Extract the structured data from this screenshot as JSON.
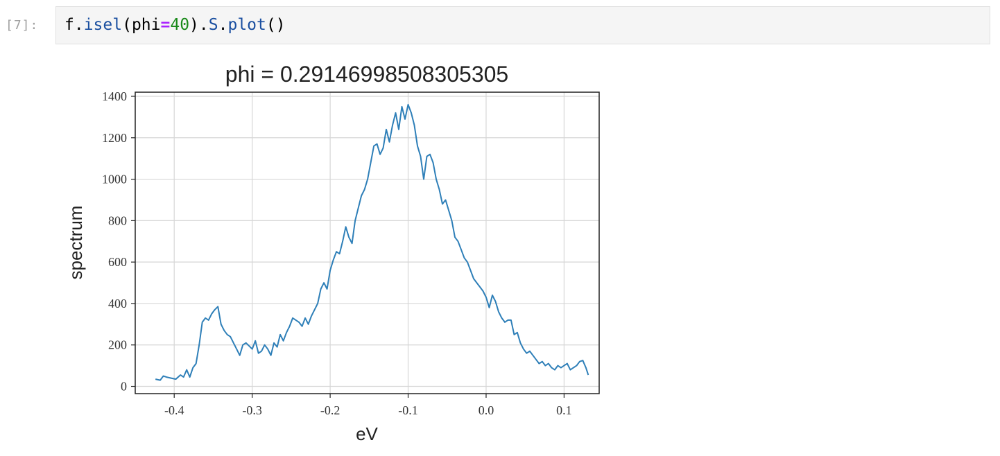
{
  "cell": {
    "prompt": "[7]:",
    "code": {
      "p1": "f.",
      "p2": "isel",
      "p3": "(phi",
      "p4": "=",
      "p5": "40",
      "p6": ").",
      "p7": "S",
      "p8": ".",
      "p9": "plot",
      "p10": "()"
    }
  },
  "chart_data": {
    "type": "line",
    "title": "phi = 0.29146998508305305",
    "xlabel": "eV",
    "ylabel": "spectrum",
    "xlim": [
      -0.45,
      0.145
    ],
    "ylim": [
      -35,
      1420
    ],
    "xticks": [
      -0.4,
      -0.3,
      -0.2,
      -0.1,
      0.0,
      0.1
    ],
    "xtick_labels": [
      "-0.4",
      "-0.3",
      "-0.2",
      "-0.1",
      "0.0",
      "0.1"
    ],
    "yticks": [
      0,
      200,
      400,
      600,
      800,
      1000,
      1200,
      1400
    ],
    "ytick_labels": [
      "0",
      "200",
      "400",
      "600",
      "800",
      "1000",
      "1200",
      "1400"
    ],
    "grid": true,
    "color": "#2e7fb8",
    "series": [
      {
        "x": [
          -0.424,
          -0.418,
          -0.414,
          -0.41,
          -0.404,
          -0.398,
          -0.392,
          -0.388,
          -0.384,
          -0.38,
          -0.376,
          -0.372,
          -0.368,
          -0.364,
          -0.36,
          -0.356,
          -0.352,
          -0.348,
          -0.344,
          -0.34,
          -0.336,
          -0.332,
          -0.328,
          -0.324,
          -0.32,
          -0.316,
          -0.312,
          -0.308,
          -0.304,
          -0.3,
          -0.296,
          -0.292,
          -0.288,
          -0.284,
          -0.28,
          -0.276,
          -0.272,
          -0.268,
          -0.264,
          -0.26,
          -0.256,
          -0.252,
          -0.248,
          -0.244,
          -0.24,
          -0.236,
          -0.232,
          -0.228,
          -0.224,
          -0.22,
          -0.216,
          -0.212,
          -0.208,
          -0.204,
          -0.2,
          -0.196,
          -0.192,
          -0.188,
          -0.184,
          -0.18,
          -0.176,
          -0.172,
          -0.168,
          -0.164,
          -0.16,
          -0.156,
          -0.152,
          -0.148,
          -0.144,
          -0.14,
          -0.136,
          -0.132,
          -0.128,
          -0.124,
          -0.12,
          -0.116,
          -0.112,
          -0.108,
          -0.104,
          -0.1,
          -0.096,
          -0.092,
          -0.088,
          -0.084,
          -0.08,
          -0.076,
          -0.072,
          -0.068,
          -0.064,
          -0.06,
          -0.056,
          -0.052,
          -0.048,
          -0.044,
          -0.04,
          -0.036,
          -0.032,
          -0.028,
          -0.024,
          -0.02,
          -0.016,
          -0.012,
          -0.008,
          -0.004,
          0.0,
          0.004,
          0.008,
          0.012,
          0.016,
          0.02,
          0.024,
          0.028,
          0.032,
          0.036,
          0.04,
          0.044,
          0.048,
          0.052,
          0.056,
          0.06,
          0.064,
          0.068,
          0.072,
          0.076,
          0.08,
          0.084,
          0.088,
          0.092,
          0.096,
          0.1,
          0.104,
          0.108,
          0.112,
          0.116,
          0.12,
          0.124,
          0.128,
          0.131
        ],
        "y": [
          35,
          30,
          50,
          45,
          40,
          35,
          55,
          45,
          80,
          45,
          90,
          110,
          200,
          310,
          330,
          320,
          350,
          370,
          385,
          300,
          270,
          250,
          240,
          210,
          180,
          150,
          200,
          210,
          195,
          180,
          220,
          160,
          170,
          200,
          180,
          150,
          210,
          190,
          250,
          220,
          260,
          290,
          330,
          320,
          310,
          290,
          330,
          300,
          340,
          370,
          400,
          470,
          500,
          470,
          560,
          610,
          650,
          640,
          700,
          770,
          720,
          690,
          800,
          860,
          920,
          950,
          1000,
          1080,
          1160,
          1170,
          1120,
          1150,
          1240,
          1180,
          1260,
          1320,
          1240,
          1350,
          1290,
          1360,
          1320,
          1260,
          1160,
          1110,
          1000,
          1110,
          1120,
          1080,
          1000,
          950,
          880,
          900,
          850,
          800,
          720,
          700,
          660,
          620,
          600,
          560,
          520,
          500,
          480,
          460,
          430,
          380,
          440,
          410,
          360,
          330,
          310,
          320,
          320,
          250,
          260,
          210,
          180,
          160,
          170,
          150,
          130,
          110,
          120,
          100,
          110,
          90,
          80,
          100,
          90,
          100,
          110,
          80,
          90,
          100,
          120,
          125,
          90,
          55
        ]
      }
    ]
  }
}
